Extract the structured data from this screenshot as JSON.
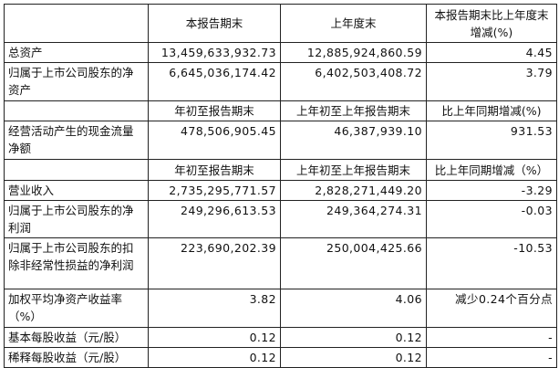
{
  "header": {
    "col1": "本报告期末",
    "col2": "上年度末",
    "col3": "本报告期末比上年度末增减(%)"
  },
  "rows_a": [
    {
      "label": "总资产",
      "v1": "13,459,633,932.73",
      "v2": "12,885,924,860.59",
      "v3": "4.45"
    },
    {
      "label": "归属于上市公司股东的净资产",
      "v1": "6,645,036,174.42",
      "v2": "6,402,503,408.72",
      "v3": "3.79"
    }
  ],
  "subheader_b": {
    "col1": "年初至报告期末",
    "col2": "上年初至上年报告期末",
    "col3": "比上年同期增减(%)"
  },
  "rows_b": [
    {
      "label": "经营活动产生的现金流量净额",
      "v1": "478,506,905.45",
      "v2": "46,387,939.10",
      "v3": "931.53"
    }
  ],
  "subheader_c": {
    "col1": "年初至报告期末",
    "col2": "上年初至上年报告期末",
    "col3": "比上年同期增减（%）"
  },
  "rows_c": [
    {
      "label": "营业收入",
      "v1": "2,735,295,771.57",
      "v2": "2,828,271,449.20",
      "v3": "-3.29"
    },
    {
      "label": "归属于上市公司股东的净利润",
      "v1": "249,296,613.53",
      "v2": "249,364,274.31",
      "v3": "-0.03"
    },
    {
      "label": "归属于上市公司股东的扣除非经常性损益的净利润",
      "v1": "223,690,202.39",
      "v2": "250,004,425.66",
      "v3": "-10.53"
    },
    {
      "label": "加权平均净资产收益率（%）",
      "v1": "3.82",
      "v2": "4.06",
      "v3": "减少0.24个百分点"
    },
    {
      "label": "基本每股收益（元/股）",
      "v1": "0.12",
      "v2": "0.12",
      "v3": "-"
    },
    {
      "label": "稀释每股收益（元/股）",
      "v1": "0.12",
      "v2": "0.12",
      "v3": "-"
    }
  ]
}
